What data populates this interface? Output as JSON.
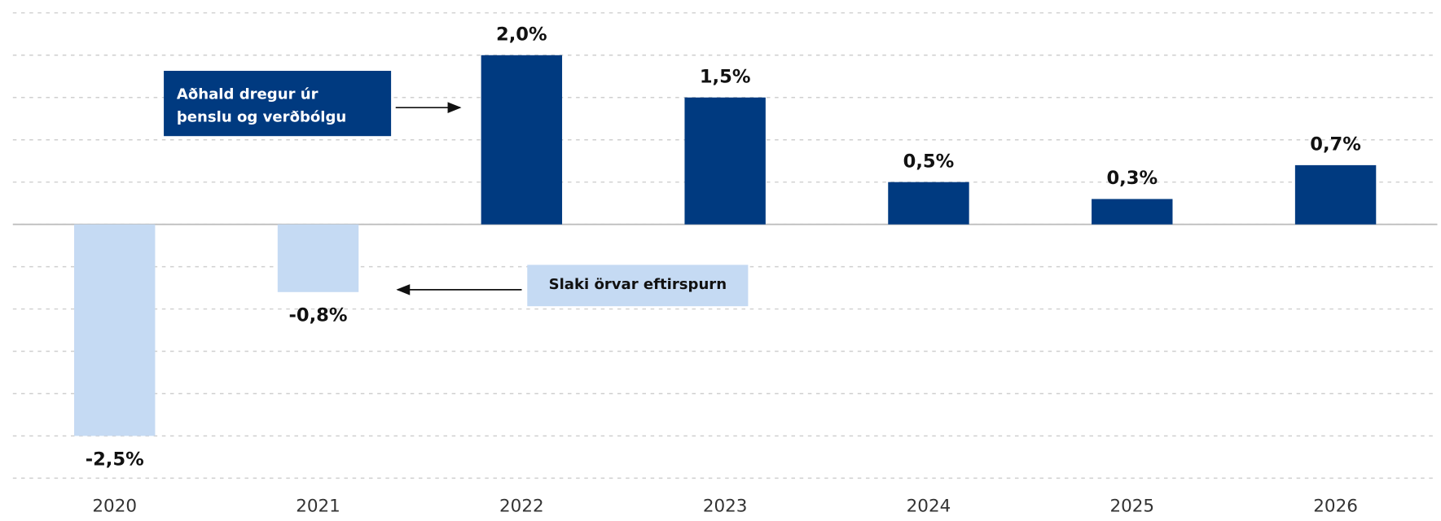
{
  "chart_data": {
    "type": "bar",
    "categories": [
      "2020",
      "2021",
      "2022",
      "2023",
      "2024",
      "2025",
      "2026"
    ],
    "values": [
      -2.5,
      -0.8,
      2.0,
      1.5,
      0.5,
      0.3,
      0.7
    ],
    "value_labels": [
      "-2,5%",
      "-0,8%",
      "2,0%",
      "1,5%",
      "0,5%",
      "0,3%",
      "0,7%"
    ],
    "colors": [
      "#c5daf3",
      "#c5daf3",
      "#003a80",
      "#003a80",
      "#003a80",
      "#003a80",
      "#003a80"
    ],
    "ylim": [
      -3,
      2.5
    ],
    "yticks": [
      -3,
      -2.5,
      -2,
      -1.5,
      -1,
      -0.5,
      0,
      0.5,
      1,
      1.5,
      2,
      2.5
    ],
    "grid": true,
    "annotations": [
      {
        "lines": [
          "Aðhald dregur úr",
          "þenslu og verðbólgu"
        ]
      },
      {
        "lines": [
          "Slaki örvar eftirspurn"
        ]
      }
    ]
  }
}
